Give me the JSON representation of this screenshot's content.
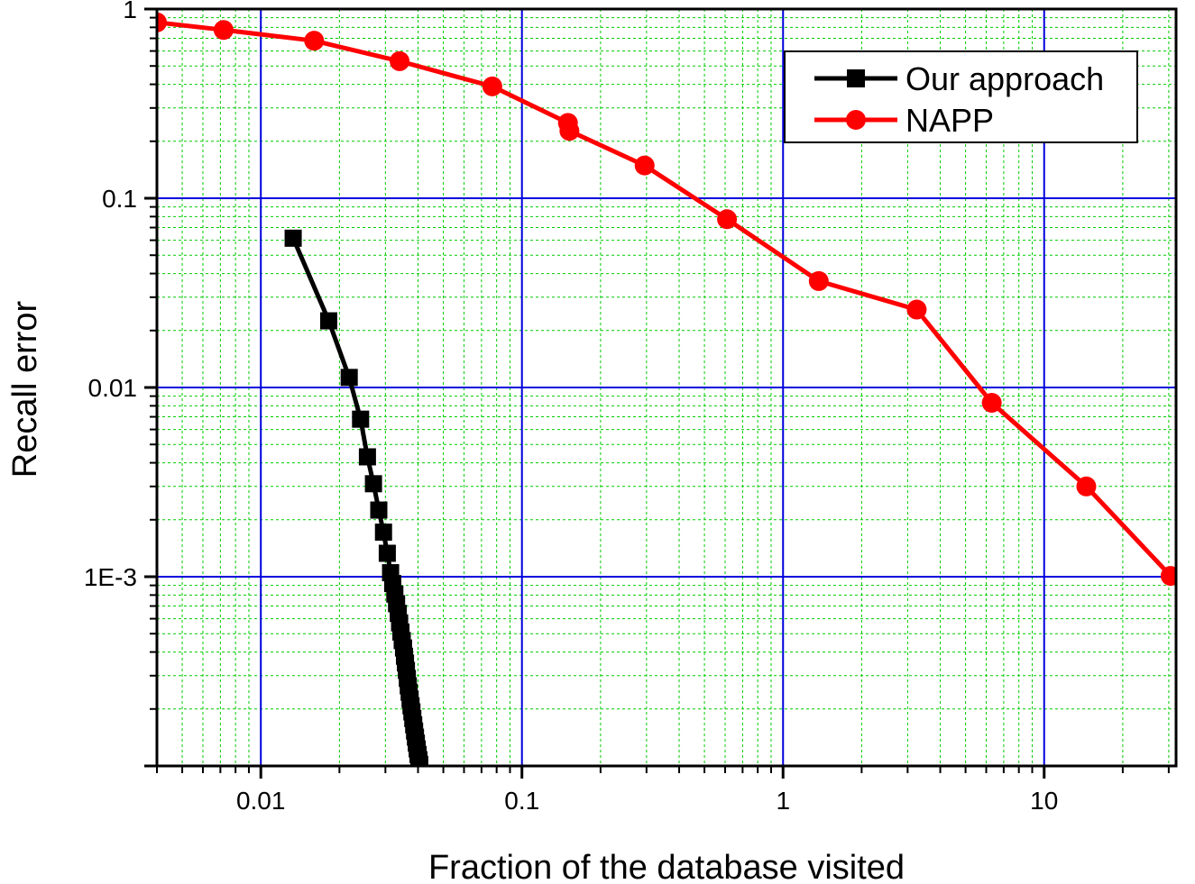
{
  "chart_data": {
    "type": "line",
    "xlabel": "Fraction of the database visited",
    "ylabel": "Recall error",
    "xscale": "log",
    "yscale": "log",
    "xlim": [
      0.004,
      32
    ],
    "ylim": [
      0.0001,
      1
    ],
    "x_ticks": [
      {
        "value": 0.01,
        "label": "0.01"
      },
      {
        "value": 0.1,
        "label": "0.1"
      },
      {
        "value": 1,
        "label": "1"
      },
      {
        "value": 10,
        "label": "10"
      }
    ],
    "y_ticks": [
      {
        "value": 1,
        "label": "1"
      },
      {
        "value": 0.1,
        "label": "0.1"
      },
      {
        "value": 0.01,
        "label": "0.01"
      },
      {
        "value": 0.001,
        "label": "1E-3"
      }
    ],
    "grid": true,
    "legend_position": "top-right",
    "colors": {
      "major_grid": "#0000dd",
      "minor_grid": "#00cc00"
    },
    "series": [
      {
        "name": "Our approach",
        "color": "#000000",
        "marker": "square",
        "points": [
          [
            0.0133,
            0.0615
          ],
          [
            0.0182,
            0.0225
          ],
          [
            0.0218,
            0.0113
          ],
          [
            0.0241,
            0.0068
          ],
          [
            0.0256,
            0.0043
          ],
          [
            0.027,
            0.0031
          ],
          [
            0.0283,
            0.00225
          ],
          [
            0.0295,
            0.00172
          ],
          [
            0.0305,
            0.00133
          ],
          [
            0.0314,
            0.00105
          ],
          [
            0.032,
            0.00092
          ],
          [
            0.0326,
            0.00081
          ],
          [
            0.0331,
            0.00072
          ],
          [
            0.0336,
            0.00064
          ],
          [
            0.034,
            0.00057
          ],
          [
            0.0344,
            0.00051
          ],
          [
            0.0348,
            0.00046
          ],
          [
            0.0352,
            0.00042
          ],
          [
            0.0355,
            0.00038
          ],
          [
            0.0358,
            0.00035
          ],
          [
            0.0361,
            0.00032
          ],
          [
            0.0364,
            0.00029
          ],
          [
            0.0367,
            0.000265
          ],
          [
            0.037,
            0.000245
          ],
          [
            0.0373,
            0.000225
          ],
          [
            0.0376,
            0.000208
          ],
          [
            0.0379,
            0.000193
          ],
          [
            0.0382,
            0.000178
          ],
          [
            0.0385,
            0.000165
          ],
          [
            0.0388,
            0.000153
          ],
          [
            0.0391,
            0.000142
          ],
          [
            0.0394,
            0.000132
          ],
          [
            0.0397,
            0.000123
          ],
          [
            0.04,
            0.000115
          ],
          [
            0.0403,
            0.000108
          ],
          [
            0.0406,
            0.000102
          ]
        ]
      },
      {
        "name": "NAPP",
        "color": "#ff0000",
        "marker": "circle",
        "points": [
          [
            0.004,
            0.85
          ],
          [
            0.0072,
            0.775
          ],
          [
            0.016,
            0.68
          ],
          [
            0.034,
            0.53
          ],
          [
            0.077,
            0.39
          ],
          [
            0.15,
            0.25
          ],
          [
            0.152,
            0.227
          ],
          [
            0.295,
            0.149
          ],
          [
            0.61,
            0.0775
          ],
          [
            1.37,
            0.0365
          ],
          [
            3.25,
            0.0258
          ],
          [
            6.3,
            0.0083
          ],
          [
            14.5,
            0.003
          ],
          [
            30.5,
            0.00101
          ]
        ]
      }
    ]
  }
}
